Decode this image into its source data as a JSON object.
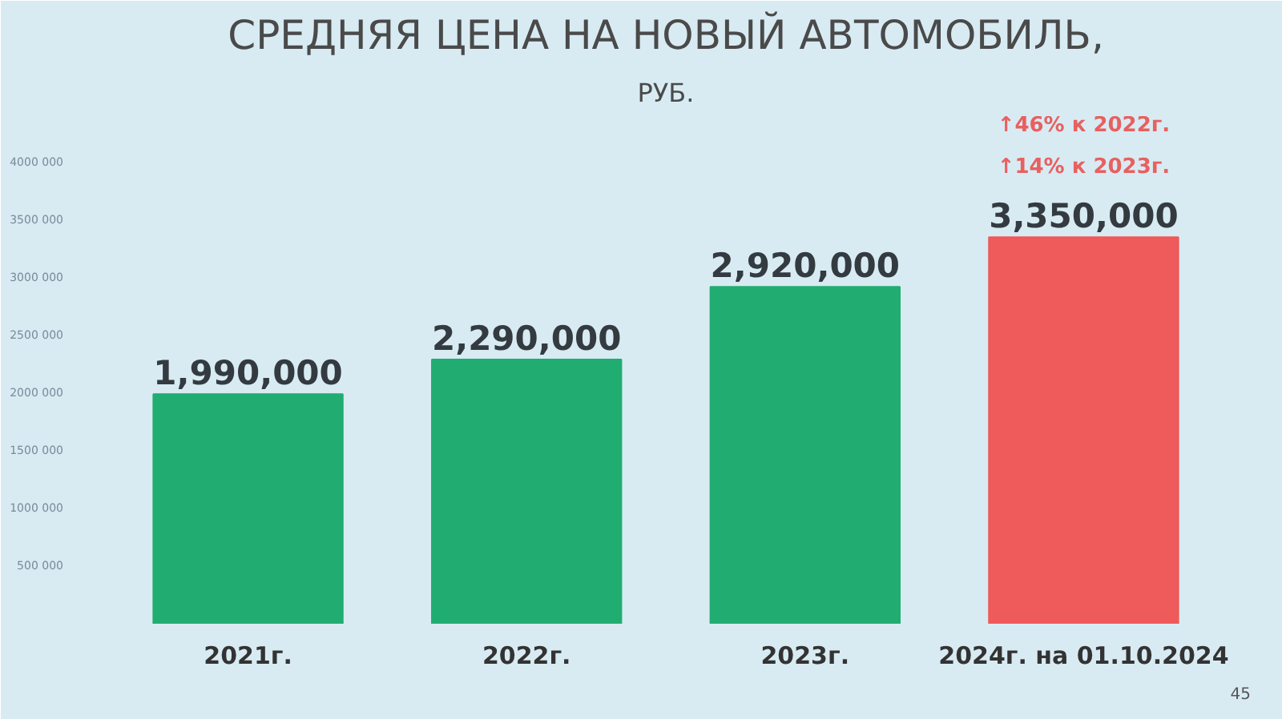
{
  "chart_data": {
    "type": "bar",
    "title": "СРЕДНЯЯ ЦЕНА НА НОВЫЙ АВТОМОБИЛЬ,",
    "subtitle": "РУБ.",
    "categories": [
      "2021г.",
      "2022г.",
      "2023г.",
      "2024г. на 01.10.2024"
    ],
    "values": [
      1990000,
      2290000,
      2920000,
      3350000
    ],
    "colors": [
      "#21ad72",
      "#21ad72",
      "#21ad72",
      "#ef5a5a"
    ],
    "value_labels": [
      "1,990,000",
      "2,290,000",
      "2,920,000",
      "3,350,000"
    ],
    "ylim": [
      0,
      4400000
    ],
    "yticks": [
      {
        "value": 500000,
        "label": "500 000"
      },
      {
        "value": 1000000,
        "label": "1000 000"
      },
      {
        "value": 1500000,
        "label": "1500 000"
      },
      {
        "value": 2000000,
        "label": "2000 000"
      },
      {
        "value": 2500000,
        "label": "2500 000"
      },
      {
        "value": 3000000,
        "label": "3000 000"
      },
      {
        "value": 3500000,
        "label": "3500 000"
      },
      {
        "value": 4000000,
        "label": "4000 000"
      }
    ],
    "grid": false,
    "annotations": [
      "↑46% к 2022г.",
      "↑14% к 2023г.",
      "45"
    ]
  }
}
